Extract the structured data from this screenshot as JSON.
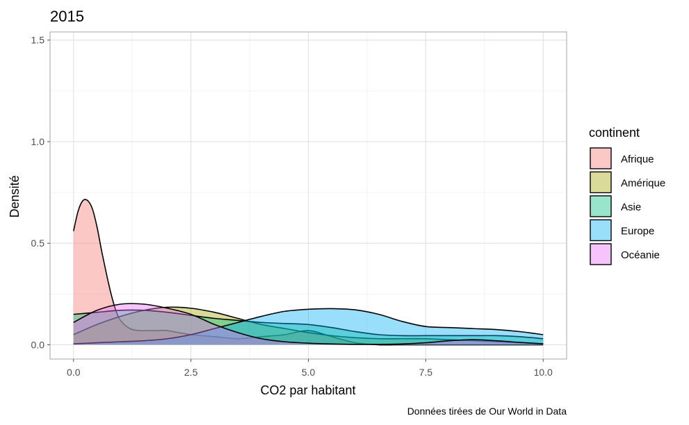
{
  "chart_data": {
    "type": "area",
    "subtype": "density",
    "title": "2015",
    "xlabel": "CO2 par habitant",
    "ylabel": "Densité",
    "caption": "Données tirées de Our World in Data",
    "xlim": [
      -0.5,
      10.5
    ],
    "ylim": [
      -0.07,
      1.54
    ],
    "x_ticks": [
      0.0,
      2.5,
      5.0,
      7.5,
      10.0
    ],
    "x_tick_labels": [
      "0.0",
      "2.5",
      "5.0",
      "7.5",
      "10.0"
    ],
    "y_ticks": [
      0.0,
      0.5,
      1.0,
      1.5
    ],
    "y_tick_labels": [
      "0.0",
      "0.5",
      "1.0",
      "1.5"
    ],
    "grid": true,
    "legend": {
      "title": "continent",
      "position": "right"
    },
    "series": [
      {
        "name": "Afrique",
        "color": "#F8766D",
        "x": [
          0.0,
          0.1,
          0.2,
          0.3,
          0.4,
          0.5,
          0.6,
          0.7,
          0.8,
          0.9,
          1.0,
          1.2,
          1.4,
          1.6,
          1.8,
          2.0,
          2.5,
          3.0,
          3.5,
          4.0,
          4.5,
          5.0,
          5.5,
          6.0,
          6.5,
          7.0,
          7.5,
          8.0,
          8.5,
          9.0,
          9.5,
          10.0
        ],
        "y": [
          0.56,
          0.66,
          0.71,
          0.71,
          0.67,
          0.58,
          0.46,
          0.35,
          0.25,
          0.17,
          0.12,
          0.08,
          0.07,
          0.07,
          0.07,
          0.07,
          0.05,
          0.04,
          0.03,
          0.04,
          0.05,
          0.07,
          0.04,
          0.01,
          0.0,
          0.0,
          0.0,
          0.0,
          0.0,
          0.0,
          0.0,
          0.0
        ]
      },
      {
        "name": "Amérique",
        "color": "#A3A500",
        "x": [
          0.0,
          0.5,
          1.0,
          1.5,
          2.0,
          2.5,
          3.0,
          3.5,
          4.0,
          4.5,
          5.0,
          5.5,
          6.0,
          6.5,
          7.0,
          7.5,
          8.0,
          8.5,
          9.0,
          9.5,
          10.0
        ],
        "y": [
          0.05,
          0.1,
          0.14,
          0.17,
          0.185,
          0.18,
          0.16,
          0.13,
          0.1,
          0.08,
          0.06,
          0.045,
          0.035,
          0.03,
          0.03,
          0.03,
          0.025,
          0.02,
          0.015,
          0.01,
          0.005
        ]
      },
      {
        "name": "Asie",
        "color": "#00BF7D",
        "x": [
          0.0,
          0.5,
          1.0,
          1.5,
          2.0,
          2.5,
          3.0,
          3.5,
          4.0,
          4.5,
          5.0,
          5.5,
          6.0,
          6.5,
          7.0,
          7.5,
          8.0,
          8.5,
          9.0,
          9.5,
          10.0
        ],
        "y": [
          0.15,
          0.16,
          0.17,
          0.17,
          0.16,
          0.145,
          0.13,
          0.12,
          0.11,
          0.105,
          0.1,
          0.085,
          0.065,
          0.05,
          0.045,
          0.045,
          0.045,
          0.045,
          0.045,
          0.04,
          0.03
        ]
      },
      {
        "name": "Europe",
        "color": "#00B0F6",
        "x": [
          0.0,
          0.5,
          1.0,
          1.5,
          2.0,
          2.5,
          3.0,
          3.5,
          4.0,
          4.5,
          5.0,
          5.5,
          6.0,
          6.5,
          7.0,
          7.5,
          8.0,
          8.5,
          9.0,
          9.5,
          10.0
        ],
        "y": [
          0.005,
          0.01,
          0.015,
          0.02,
          0.03,
          0.05,
          0.08,
          0.11,
          0.14,
          0.165,
          0.175,
          0.178,
          0.172,
          0.15,
          0.115,
          0.09,
          0.085,
          0.08,
          0.075,
          0.065,
          0.05
        ]
      },
      {
        "name": "Océanie",
        "color": "#E76BF3",
        "x": [
          0.0,
          0.5,
          1.0,
          1.5,
          2.0,
          2.5,
          3.0,
          3.5,
          4.0,
          4.5,
          5.0,
          5.5,
          6.0,
          6.5,
          7.0,
          7.5,
          8.0,
          8.5,
          9.0,
          9.5,
          10.0
        ],
        "y": [
          0.11,
          0.17,
          0.2,
          0.2,
          0.18,
          0.15,
          0.1,
          0.06,
          0.03,
          0.015,
          0.008,
          0.004,
          0.002,
          0.002,
          0.004,
          0.01,
          0.02,
          0.025,
          0.02,
          0.012,
          0.005
        ]
      }
    ]
  }
}
